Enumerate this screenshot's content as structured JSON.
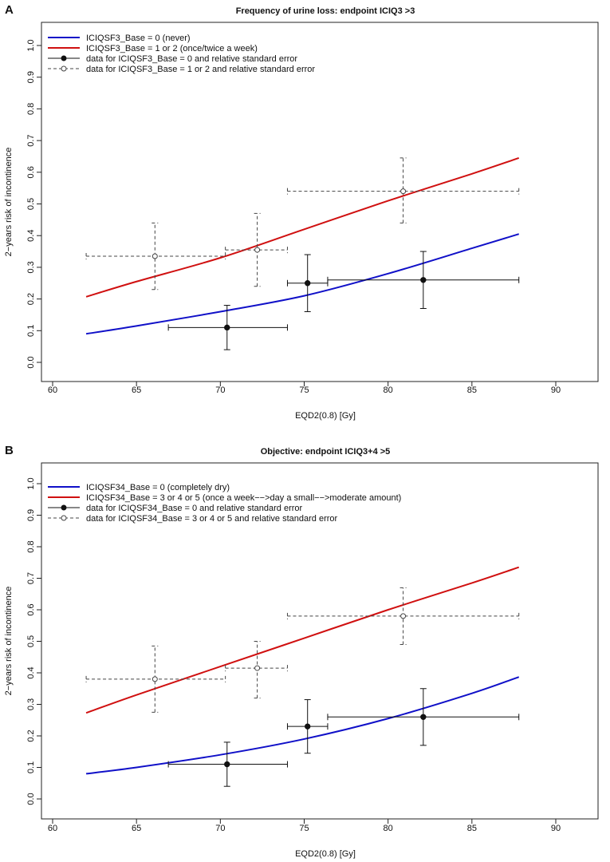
{
  "chart_data": [
    {
      "panel": "A",
      "type": "line",
      "title": "Frequency of urine loss: endpoint ICIQ3 >3",
      "xlabel": "EQD2(0.8) [Gy]",
      "ylabel": "2−years risk of incontinence",
      "xlim": [
        60,
        90
      ],
      "ylim": [
        0.0,
        1.0
      ],
      "xticks": [
        60,
        65,
        70,
        75,
        80,
        85,
        90
      ],
      "yticks": [
        "0.0",
        "0.1",
        "0.2",
        "0.3",
        "0.4",
        "0.5",
        "0.6",
        "0.7",
        "0.8",
        "0.9",
        "1.0"
      ],
      "legend_position": "top-left",
      "series": [
        {
          "name": "ICIQSF3_Base = 0 (never)",
          "kind": "curve",
          "color": "#1010c8",
          "x": [
            62,
            65,
            70,
            75,
            80,
            85,
            87.8
          ],
          "y": [
            0.09,
            0.115,
            0.16,
            0.21,
            0.28,
            0.36,
            0.405
          ]
        },
        {
          "name": "ICIQSF3_Base = 1 or 2 (once/twice a week)",
          "kind": "curve",
          "color": "#d01010",
          "x": [
            62,
            65,
            70,
            75,
            80,
            85,
            87.8
          ],
          "y": [
            0.207,
            0.255,
            0.33,
            0.42,
            0.51,
            0.595,
            0.645
          ]
        },
        {
          "name": "data for ICIQSF3_Base = 0 and relative standard error",
          "kind": "points",
          "marker": "filled",
          "color": "#111111",
          "points": [
            {
              "x": 70.4,
              "y": 0.11,
              "xmin": 66.9,
              "xmax": 74.0,
              "ymin": 0.04,
              "ymax": 0.18
            },
            {
              "x": 75.2,
              "y": 0.25,
              "xmin": 74.0,
              "xmax": 76.4,
              "ymin": 0.16,
              "ymax": 0.34
            },
            {
              "x": 82.1,
              "y": 0.26,
              "xmin": 76.4,
              "xmax": 87.8,
              "ymin": 0.17,
              "ymax": 0.35
            }
          ]
        },
        {
          "name": "data for ICIQSF3_Base = 1 or 2 and relative standard error",
          "kind": "points",
          "marker": "open",
          "color": "#444444",
          "points": [
            {
              "x": 66.1,
              "y": 0.335,
              "xmin": 62.0,
              "xmax": 70.3,
              "ymin": 0.23,
              "ymax": 0.44
            },
            {
              "x": 72.2,
              "y": 0.355,
              "xmin": 70.3,
              "xmax": 74.0,
              "ymin": 0.24,
              "ymax": 0.47
            },
            {
              "x": 80.9,
              "y": 0.54,
              "xmin": 74.0,
              "xmax": 87.8,
              "ymin": 0.44,
              "ymax": 0.645
            }
          ]
        }
      ]
    },
    {
      "panel": "B",
      "type": "line",
      "title": "Objective: endpoint ICIQ3+4 >5",
      "xlabel": "EQD2(0.8) [Gy]",
      "ylabel": "2−years risk of incontinence",
      "xlim": [
        60,
        90
      ],
      "ylim": [
        0.0,
        1.0
      ],
      "xticks": [
        60,
        65,
        70,
        75,
        80,
        85,
        90
      ],
      "yticks": [
        "0.0",
        "0.1",
        "0.2",
        "0.3",
        "0.4",
        "0.5",
        "0.6",
        "0.7",
        "0.8",
        "0.9",
        "1.0"
      ],
      "legend_position": "top-left",
      "series": [
        {
          "name": "ICIQSF34_Base = 0 (completely dry)",
          "kind": "curve",
          "color": "#1010c8",
          "x": [
            62,
            65,
            70,
            75,
            80,
            85,
            87.8
          ],
          "y": [
            0.08,
            0.1,
            0.14,
            0.19,
            0.255,
            0.335,
            0.387
          ]
        },
        {
          "name": "ICIQSF34_Base = 3 or 4 or 5 (once a week−−>day a small−−>moderate amount)",
          "kind": "curve",
          "color": "#d01010",
          "x": [
            62,
            65,
            70,
            75,
            80,
            85,
            87.8
          ],
          "y": [
            0.273,
            0.33,
            0.42,
            0.51,
            0.6,
            0.685,
            0.735
          ]
        },
        {
          "name": "data for ICIQSF34_Base = 0 and relative standard error",
          "kind": "points",
          "marker": "filled",
          "color": "#111111",
          "points": [
            {
              "x": 70.4,
              "y": 0.11,
              "xmin": 66.9,
              "xmax": 74.0,
              "ymin": 0.04,
              "ymax": 0.18
            },
            {
              "x": 75.2,
              "y": 0.23,
              "xmin": 74.0,
              "xmax": 76.4,
              "ymin": 0.145,
              "ymax": 0.315
            },
            {
              "x": 82.1,
              "y": 0.26,
              "xmin": 76.4,
              "xmax": 87.8,
              "ymin": 0.17,
              "ymax": 0.35
            }
          ]
        },
        {
          "name": "data for ICIQSF34_Base = 3 or 4 or 5 and relative standard error",
          "kind": "points",
          "marker": "open",
          "color": "#444444",
          "points": [
            {
              "x": 66.1,
              "y": 0.38,
              "xmin": 62.0,
              "xmax": 70.3,
              "ymin": 0.275,
              "ymax": 0.485
            },
            {
              "x": 72.2,
              "y": 0.415,
              "xmin": 70.3,
              "xmax": 74.0,
              "ymin": 0.32,
              "ymax": 0.5
            },
            {
              "x": 80.9,
              "y": 0.58,
              "xmin": 74.0,
              "xmax": 87.8,
              "ymin": 0.49,
              "ymax": 0.67
            }
          ]
        }
      ]
    }
  ]
}
